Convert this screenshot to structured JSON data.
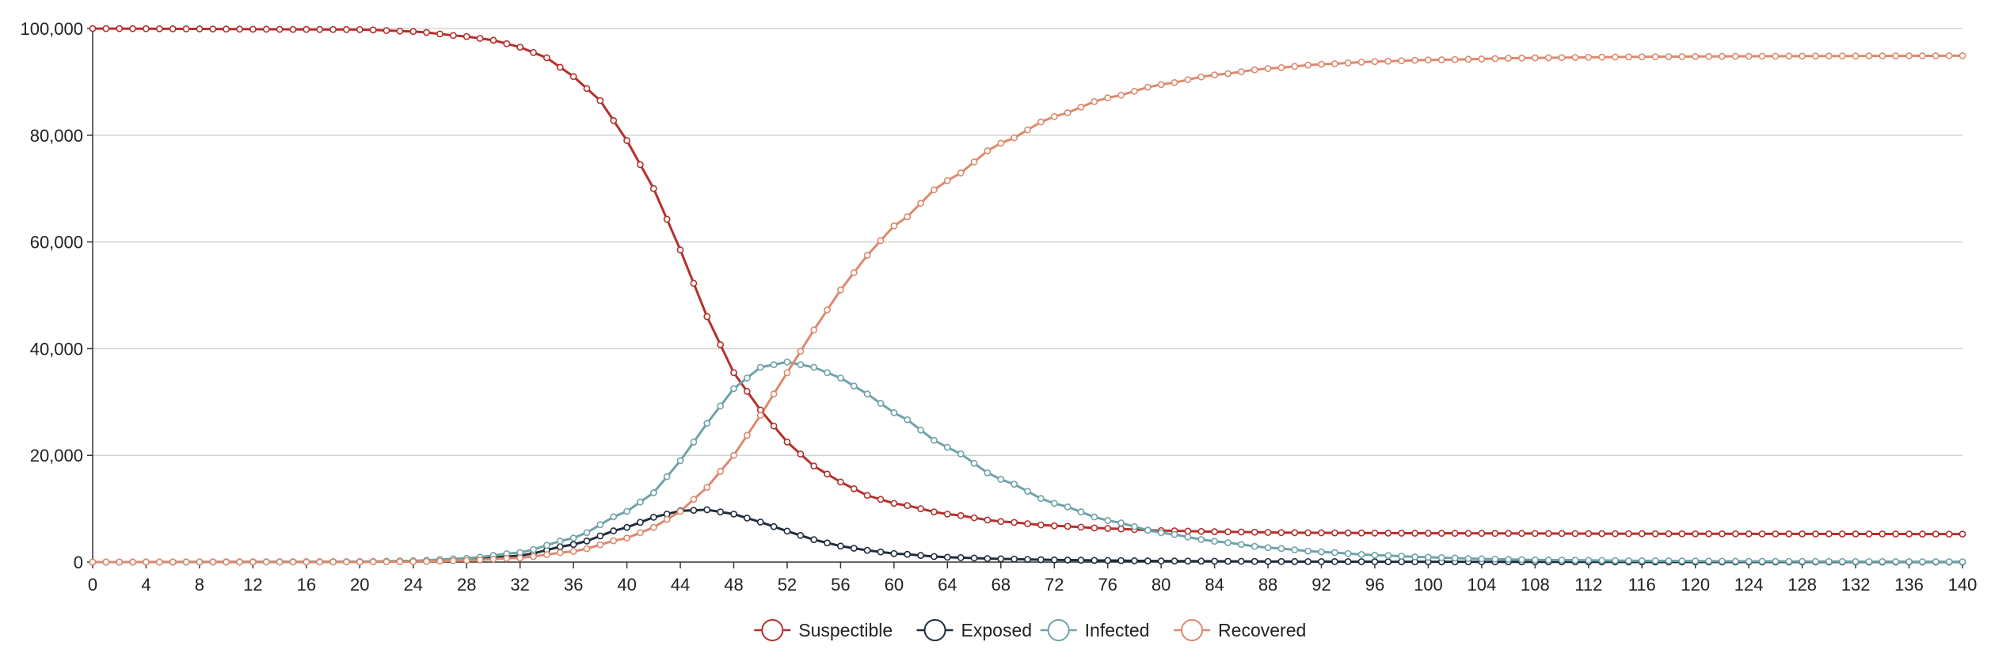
{
  "chart_data": {
    "type": "line",
    "title": "",
    "xlabel": "",
    "ylabel": "",
    "xlim": [
      0,
      140
    ],
    "ylim": [
      0,
      100000
    ],
    "x_ticks": [
      "0",
      "4",
      "8",
      "12",
      "16",
      "20",
      "24",
      "28",
      "32",
      "36",
      "40",
      "44",
      "48",
      "52",
      "56",
      "60",
      "64",
      "68",
      "72",
      "76",
      "80",
      "84",
      "88",
      "92",
      "96",
      "100",
      "104",
      "108",
      "112",
      "116",
      "120",
      "124",
      "128",
      "132",
      "136",
      "140"
    ],
    "y_ticks": [
      "0",
      "20,000",
      "40,000",
      "60,000",
      "80,000",
      "100,000"
    ],
    "grid": "horizontal",
    "legend_position": "bottom-center",
    "marker": "hollow-circle",
    "x_step": 1,
    "series": [
      {
        "name": "Suspectible",
        "color": "#b5302c",
        "key_points": [
          [
            0,
            99990
          ],
          [
            20,
            99800
          ],
          [
            24,
            99450
          ],
          [
            28,
            98500
          ],
          [
            30,
            97800
          ],
          [
            32,
            96500
          ],
          [
            34,
            94500
          ],
          [
            36,
            91000
          ],
          [
            38,
            86500
          ],
          [
            40,
            79000
          ],
          [
            42,
            70000
          ],
          [
            44,
            58500
          ],
          [
            46,
            46000
          ],
          [
            48,
            35500
          ],
          [
            50,
            28500
          ],
          [
            52,
            22500
          ],
          [
            54,
            18000
          ],
          [
            56,
            15000
          ],
          [
            58,
            12500
          ],
          [
            60,
            11000
          ],
          [
            64,
            9000
          ],
          [
            68,
            7600
          ],
          [
            72,
            6800
          ],
          [
            76,
            6300
          ],
          [
            80,
            5900
          ],
          [
            84,
            5700
          ],
          [
            90,
            5500
          ],
          [
            100,
            5400
          ],
          [
            120,
            5300
          ],
          [
            140,
            5250
          ]
        ]
      },
      {
        "name": "Exposed",
        "color": "#1f2d3d",
        "key_points": [
          [
            0,
            0
          ],
          [
            20,
            50
          ],
          [
            24,
            150
          ],
          [
            28,
            450
          ],
          [
            32,
            1200
          ],
          [
            36,
            3300
          ],
          [
            40,
            6500
          ],
          [
            42,
            8400
          ],
          [
            44,
            9600
          ],
          [
            46,
            9800
          ],
          [
            48,
            9000
          ],
          [
            50,
            7500
          ],
          [
            52,
            5800
          ],
          [
            54,
            4200
          ],
          [
            56,
            3000
          ],
          [
            58,
            2200
          ],
          [
            60,
            1600
          ],
          [
            64,
            900
          ],
          [
            68,
            600
          ],
          [
            72,
            400
          ],
          [
            76,
            300
          ],
          [
            80,
            200
          ],
          [
            90,
            100
          ],
          [
            100,
            50
          ],
          [
            120,
            20
          ],
          [
            140,
            10
          ]
        ]
      },
      {
        "name": "Infected",
        "color": "#6fa3a8",
        "key_points": [
          [
            0,
            0
          ],
          [
            20,
            100
          ],
          [
            24,
            250
          ],
          [
            28,
            700
          ],
          [
            32,
            1800
          ],
          [
            36,
            4500
          ],
          [
            40,
            9500
          ],
          [
            42,
            13000
          ],
          [
            44,
            19000
          ],
          [
            46,
            26000
          ],
          [
            48,
            32500
          ],
          [
            50,
            36500
          ],
          [
            52,
            37500
          ],
          [
            54,
            36500
          ],
          [
            56,
            34500
          ],
          [
            58,
            31500
          ],
          [
            60,
            28000
          ],
          [
            64,
            21500
          ],
          [
            68,
            15500
          ],
          [
            72,
            11000
          ],
          [
            76,
            7800
          ],
          [
            80,
            5500
          ],
          [
            84,
            3900
          ],
          [
            88,
            2700
          ],
          [
            92,
            1900
          ],
          [
            96,
            1300
          ],
          [
            100,
            900
          ],
          [
            104,
            600
          ],
          [
            108,
            400
          ],
          [
            116,
            250
          ],
          [
            124,
            150
          ],
          [
            132,
            100
          ],
          [
            140,
            60
          ]
        ]
      },
      {
        "name": "Recovered",
        "color": "#dc8a6e",
        "key_points": [
          [
            0,
            0
          ],
          [
            20,
            20
          ],
          [
            24,
            80
          ],
          [
            28,
            300
          ],
          [
            32,
            800
          ],
          [
            36,
            2000
          ],
          [
            40,
            4500
          ],
          [
            42,
            6500
          ],
          [
            44,
            9500
          ],
          [
            46,
            14000
          ],
          [
            48,
            20000
          ],
          [
            50,
            27500
          ],
          [
            52,
            35500
          ],
          [
            54,
            43500
          ],
          [
            56,
            51000
          ],
          [
            58,
            57500
          ],
          [
            60,
            63000
          ],
          [
            64,
            71500
          ],
          [
            68,
            78500
          ],
          [
            72,
            83500
          ],
          [
            76,
            87000
          ],
          [
            80,
            89500
          ],
          [
            84,
            91300
          ],
          [
            88,
            92500
          ],
          [
            92,
            93300
          ],
          [
            96,
            93800
          ],
          [
            100,
            94100
          ],
          [
            108,
            94500
          ],
          [
            116,
            94700
          ],
          [
            124,
            94800
          ],
          [
            132,
            94850
          ],
          [
            140,
            94900
          ]
        ]
      }
    ]
  }
}
